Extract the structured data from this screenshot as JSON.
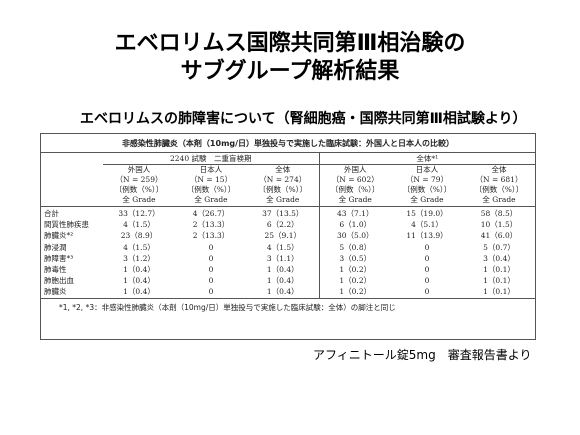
{
  "title_line1": "エベロリムス国際共同第Ⅲ相治験の",
  "title_line2": "サブグループ解析結果",
  "subtitle": "エベロリムスの肺障害について（腎細胞癌・国際共同第Ⅲ相試験より）",
  "table": {
    "caption": "非感染性肺臓炎（本剤（10mg/日）単独投与で実施した臨床試験：外国人と日本人の比較）",
    "group_left": "2240 試験　二重盲検期",
    "group_right": "全体*¹",
    "columns": [
      {
        "pop": "外国人",
        "n": "（N = 259）",
        "unit": "〔例数（%）〕",
        "grade": "全 Grade"
      },
      {
        "pop": "日本人",
        "n": "（N = 15）",
        "unit": "〔例数（%）〕",
        "grade": "全 Grade"
      },
      {
        "pop": "全体",
        "n": "（N = 274）",
        "unit": "〔例数（%）〕",
        "grade": "全 Grade"
      },
      {
        "pop": "外国人",
        "n": "（N = 602）",
        "unit": "〔例数（%）〕",
        "grade": "全 Grade"
      },
      {
        "pop": "日本人",
        "n": "（N = 79）",
        "unit": "〔例数（%）〕",
        "grade": "全 Grade"
      },
      {
        "pop": "全体",
        "n": "（N = 681）",
        "unit": "〔例数（%）〕",
        "grade": "全 Grade"
      }
    ],
    "rows": [
      {
        "label": "合計",
        "values": [
          "33（12.7）",
          "4（26.7）",
          "37（13.5）",
          "43（7.1）",
          "15（19.0）",
          "58（8.5）"
        ]
      },
      {
        "label": "間質性肺疾患",
        "values": [
          "4（1.5）",
          "2（13.3）",
          "6（2.2）",
          "6（1.0）",
          "4（5.1）",
          "10（1.5）"
        ]
      },
      {
        "label": "肺臓炎*²",
        "values": [
          "23（8.9）",
          "2（13.3）",
          "25（9.1）",
          "30（5.0）",
          "11（13.9）",
          "41（6.0）"
        ]
      },
      {
        "label": "肺浸潤",
        "values": [
          "4（1.5）",
          "0",
          "4（1.5）",
          "5（0.8）",
          "0",
          "5（0.7）"
        ]
      },
      {
        "label": "肺障害*³",
        "values": [
          "3（1.2）",
          "0",
          "3（1.1）",
          "3（0.5）",
          "0",
          "3（0.4）"
        ]
      },
      {
        "label": "肺毒性",
        "values": [
          "1（0.4）",
          "0",
          "1（0.4）",
          "1（0.2）",
          "0",
          "1（0.1）"
        ]
      },
      {
        "label": "肺胞出血",
        "values": [
          "1（0.4）",
          "0",
          "1（0.4）",
          "1（0.2）",
          "0",
          "1（0.1）"
        ]
      },
      {
        "label": "肺臓炎",
        "values": [
          "1（0.4）",
          "0",
          "1（0.4）",
          "1（0.2）",
          "0",
          "1（0.1）"
        ]
      }
    ],
    "footnote": "*1, *2, *3：非感染性肺臓炎（本剤（10mg/日）単独投与で実施した臨床試験：全体）の脚注と同じ"
  },
  "source": "アフィニトール錠5mg　審査報告書より"
}
